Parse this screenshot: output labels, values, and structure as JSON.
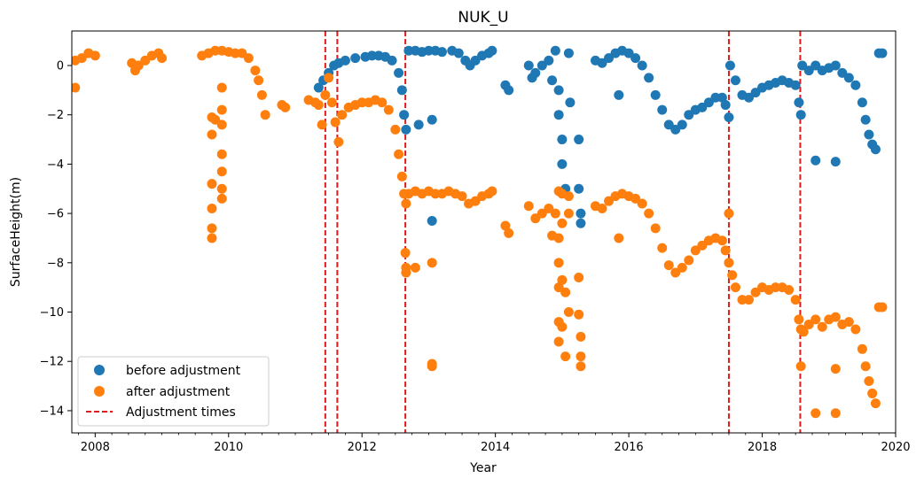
{
  "chart_data": {
    "type": "scatter",
    "title": "NUK_U",
    "xlabel": "Year",
    "ylabel": "SurfaceHeight(m)",
    "xlim": [
      2007.65,
      2020.0
    ],
    "ylim": [
      -14.9,
      1.4
    ],
    "x_ticks": [
      2008,
      2010,
      2012,
      2014,
      2016,
      2018,
      2020
    ],
    "y_ticks": [
      0,
      -2,
      -4,
      -6,
      -8,
      -10,
      -12,
      -14
    ],
    "grid": false,
    "legend_position": "lower-left",
    "series": [
      {
        "name": "before adjustment",
        "color": "#1f77b4",
        "marker": "circle",
        "points": [
          [
            2011.35,
            -0.9
          ],
          [
            2011.42,
            -0.6
          ],
          [
            2011.5,
            -0.3
          ],
          [
            2011.58,
            0.0
          ],
          [
            2011.65,
            0.1
          ],
          [
            2011.75,
            0.2
          ],
          [
            2011.9,
            0.3
          ],
          [
            2012.05,
            0.35
          ],
          [
            2012.15,
            0.4
          ],
          [
            2012.25,
            0.4
          ],
          [
            2012.35,
            0.35
          ],
          [
            2012.45,
            0.2
          ],
          [
            2012.55,
            -0.3
          ],
          [
            2012.6,
            -1.0
          ],
          [
            2012.63,
            -2.0
          ],
          [
            2012.66,
            -2.6
          ],
          [
            2012.7,
            0.6
          ],
          [
            2012.8,
            0.6
          ],
          [
            2012.9,
            0.55
          ],
          [
            2013.0,
            0.6
          ],
          [
            2013.1,
            0.6
          ],
          [
            2013.2,
            0.55
          ],
          [
            2013.35,
            0.6
          ],
          [
            2013.45,
            0.5
          ],
          [
            2013.55,
            0.2
          ],
          [
            2013.62,
            0.0
          ],
          [
            2013.7,
            0.2
          ],
          [
            2013.8,
            0.4
          ],
          [
            2013.9,
            0.5
          ],
          [
            2013.95,
            0.6
          ],
          [
            2012.85,
            -2.4
          ],
          [
            2013.05,
            -2.2
          ],
          [
            2013.05,
            -6.3
          ],
          [
            2014.15,
            -0.8
          ],
          [
            2014.2,
            -1.0
          ],
          [
            2014.5,
            0.0
          ],
          [
            2014.55,
            -0.5
          ],
          [
            2014.6,
            -0.3
          ],
          [
            2014.7,
            0.0
          ],
          [
            2014.8,
            0.2
          ],
          [
            2014.85,
            -0.6
          ],
          [
            2014.9,
            0.6
          ],
          [
            2014.95,
            -1.0
          ],
          [
            2014.95,
            -2.0
          ],
          [
            2015.0,
            -3.0
          ],
          [
            2015.0,
            -4.0
          ],
          [
            2015.05,
            -5.0
          ],
          [
            2015.1,
            0.5
          ],
          [
            2015.12,
            -1.5
          ],
          [
            2015.25,
            -3.0
          ],
          [
            2015.25,
            -5.0
          ],
          [
            2015.28,
            -6.0
          ],
          [
            2015.28,
            -6.4
          ],
          [
            2015.5,
            0.2
          ],
          [
            2015.6,
            0.1
          ],
          [
            2015.7,
            0.3
          ],
          [
            2015.8,
            0.5
          ],
          [
            2015.9,
            0.6
          ],
          [
            2016.0,
            0.5
          ],
          [
            2016.1,
            0.3
          ],
          [
            2016.2,
            0.0
          ],
          [
            2016.3,
            -0.5
          ],
          [
            2016.4,
            -1.2
          ],
          [
            2016.5,
            -1.8
          ],
          [
            2016.6,
            -2.4
          ],
          [
            2016.7,
            -2.6
          ],
          [
            2016.8,
            -2.4
          ],
          [
            2016.9,
            -2.0
          ],
          [
            2017.0,
            -1.8
          ],
          [
            2017.1,
            -1.7
          ],
          [
            2017.2,
            -1.5
          ],
          [
            2017.3,
            -1.3
          ],
          [
            2017.4,
            -1.3
          ],
          [
            2017.45,
            -1.6
          ],
          [
            2017.5,
            -2.1
          ],
          [
            2015.85,
            -1.2
          ],
          [
            2017.52,
            0.0
          ],
          [
            2017.6,
            -0.6
          ],
          [
            2017.7,
            -1.2
          ],
          [
            2017.8,
            -1.3
          ],
          [
            2017.9,
            -1.1
          ],
          [
            2018.0,
            -0.9
          ],
          [
            2018.1,
            -0.8
          ],
          [
            2018.2,
            -0.7
          ],
          [
            2018.3,
            -0.6
          ],
          [
            2018.4,
            -0.7
          ],
          [
            2018.5,
            -0.8
          ],
          [
            2018.55,
            -1.5
          ],
          [
            2018.58,
            -2.0
          ],
          [
            2018.6,
            0.0
          ],
          [
            2018.7,
            -0.2
          ],
          [
            2018.8,
            0.0
          ],
          [
            2018.9,
            -0.2
          ],
          [
            2019.0,
            -0.1
          ],
          [
            2019.1,
            0.0
          ],
          [
            2019.2,
            -0.3
          ],
          [
            2019.3,
            -0.5
          ],
          [
            2019.4,
            -0.8
          ],
          [
            2019.5,
            -1.5
          ],
          [
            2019.55,
            -2.2
          ],
          [
            2019.6,
            -2.8
          ],
          [
            2019.65,
            -3.2
          ],
          [
            2019.7,
            -3.4
          ],
          [
            2019.75,
            0.5
          ],
          [
            2019.8,
            0.5
          ],
          [
            2018.8,
            -3.85
          ],
          [
            2019.1,
            -3.9
          ]
        ]
      },
      {
        "name": "after adjustment",
        "color": "#ff7f0e",
        "marker": "circle",
        "points": [
          [
            2007.7,
            -0.9
          ],
          [
            2007.7,
            0.2
          ],
          [
            2007.8,
            0.3
          ],
          [
            2007.9,
            0.5
          ],
          [
            2008.0,
            0.4
          ],
          [
            2008.55,
            0.1
          ],
          [
            2008.6,
            -0.2
          ],
          [
            2008.65,
            0.0
          ],
          [
            2008.75,
            0.2
          ],
          [
            2008.85,
            0.4
          ],
          [
            2008.95,
            0.5
          ],
          [
            2009.0,
            0.3
          ],
          [
            2009.6,
            0.4
          ],
          [
            2009.7,
            0.5
          ],
          [
            2009.8,
            0.6
          ],
          [
            2009.9,
            0.6
          ],
          [
            2010.0,
            0.55
          ],
          [
            2010.1,
            0.5
          ],
          [
            2010.2,
            0.5
          ],
          [
            2010.3,
            0.3
          ],
          [
            2010.4,
            -0.2
          ],
          [
            2010.45,
            -0.6
          ],
          [
            2010.5,
            -1.2
          ],
          [
            2010.55,
            -2.0
          ],
          [
            2009.75,
            -2.1
          ],
          [
            2009.75,
            -2.8
          ],
          [
            2009.75,
            -4.8
          ],
          [
            2009.75,
            -5.8
          ],
          [
            2009.75,
            -6.6
          ],
          [
            2009.75,
            -7.0
          ],
          [
            2009.8,
            -2.2
          ],
          [
            2009.9,
            -3.6
          ],
          [
            2009.9,
            -4.3
          ],
          [
            2009.9,
            -5.0
          ],
          [
            2009.9,
            -5.4
          ],
          [
            2009.9,
            -0.9
          ],
          [
            2009.9,
            -1.8
          ],
          [
            2009.9,
            -2.4
          ],
          [
            2010.8,
            -1.6
          ],
          [
            2010.85,
            -1.7
          ],
          [
            2011.2,
            -1.4
          ],
          [
            2011.3,
            -1.5
          ],
          [
            2011.35,
            -1.6
          ],
          [
            2011.4,
            -2.4
          ],
          [
            2011.45,
            -1.2
          ],
          [
            2011.5,
            -0.5
          ],
          [
            2011.55,
            -1.5
          ],
          [
            2011.6,
            -2.3
          ],
          [
            2011.65,
            -3.1
          ],
          [
            2011.7,
            -2.0
          ],
          [
            2011.8,
            -1.7
          ],
          [
            2011.9,
            -1.6
          ],
          [
            2012.0,
            -1.5
          ],
          [
            2012.1,
            -1.5
          ],
          [
            2012.2,
            -1.4
          ],
          [
            2012.3,
            -1.5
          ],
          [
            2012.4,
            -1.8
          ],
          [
            2012.5,
            -2.6
          ],
          [
            2012.55,
            -3.6
          ],
          [
            2012.6,
            -4.5
          ],
          [
            2012.63,
            -5.2
          ],
          [
            2012.66,
            -5.6
          ],
          [
            2012.65,
            -7.6
          ],
          [
            2012.66,
            -8.2
          ],
          [
            2012.66,
            -8.4
          ],
          [
            2012.8,
            -8.2
          ],
          [
            2013.05,
            -8.0
          ],
          [
            2013.05,
            -12.1
          ],
          [
            2013.05,
            -12.2
          ],
          [
            2012.7,
            -5.2
          ],
          [
            2012.8,
            -5.1
          ],
          [
            2012.9,
            -5.2
          ],
          [
            2013.0,
            -5.1
          ],
          [
            2013.1,
            -5.2
          ],
          [
            2013.2,
            -5.2
          ],
          [
            2013.3,
            -5.1
          ],
          [
            2013.4,
            -5.2
          ],
          [
            2013.5,
            -5.3
          ],
          [
            2013.6,
            -5.6
          ],
          [
            2013.7,
            -5.5
          ],
          [
            2013.8,
            -5.3
          ],
          [
            2013.9,
            -5.2
          ],
          [
            2013.95,
            -5.1
          ],
          [
            2014.15,
            -6.5
          ],
          [
            2014.2,
            -6.8
          ],
          [
            2014.5,
            -5.7
          ],
          [
            2014.6,
            -6.2
          ],
          [
            2014.7,
            -6.0
          ],
          [
            2014.8,
            -5.8
          ],
          [
            2014.85,
            -6.9
          ],
          [
            2014.9,
            -6.0
          ],
          [
            2014.95,
            -5.1
          ],
          [
            2015.0,
            -5.2
          ],
          [
            2015.1,
            -5.3
          ],
          [
            2014.95,
            -7.0
          ],
          [
            2014.95,
            -8.0
          ],
          [
            2014.95,
            -9.0
          ],
          [
            2014.95,
            -10.4
          ],
          [
            2014.95,
            -11.2
          ],
          [
            2015.0,
            -8.7
          ],
          [
            2015.0,
            -10.6
          ],
          [
            2015.05,
            -11.8
          ],
          [
            2015.05,
            -9.2
          ],
          [
            2015.1,
            -10.0
          ],
          [
            2015.25,
            -8.6
          ],
          [
            2015.25,
            -10.1
          ],
          [
            2015.28,
            -11.0
          ],
          [
            2015.28,
            -11.8
          ],
          [
            2015.28,
            -12.2
          ],
          [
            2015.0,
            -6.4
          ],
          [
            2015.1,
            -6.0
          ],
          [
            2015.5,
            -5.7
          ],
          [
            2015.6,
            -5.8
          ],
          [
            2015.7,
            -5.5
          ],
          [
            2015.8,
            -5.3
          ],
          [
            2015.9,
            -5.2
          ],
          [
            2016.0,
            -5.3
          ],
          [
            2016.1,
            -5.4
          ],
          [
            2016.2,
            -5.6
          ],
          [
            2016.3,
            -6.0
          ],
          [
            2016.4,
            -6.6
          ],
          [
            2016.5,
            -7.4
          ],
          [
            2016.6,
            -8.1
          ],
          [
            2016.7,
            -8.4
          ],
          [
            2016.8,
            -8.2
          ],
          [
            2016.9,
            -7.9
          ],
          [
            2017.0,
            -7.5
          ],
          [
            2017.1,
            -7.3
          ],
          [
            2017.2,
            -7.1
          ],
          [
            2017.3,
            -7.0
          ],
          [
            2017.4,
            -7.1
          ],
          [
            2017.45,
            -7.5
          ],
          [
            2017.5,
            -8.0
          ],
          [
            2015.85,
            -7.0
          ],
          [
            2017.5,
            -6.0
          ],
          [
            2017.55,
            -8.5
          ],
          [
            2017.6,
            -9.0
          ],
          [
            2017.7,
            -9.5
          ],
          [
            2017.8,
            -9.5
          ],
          [
            2017.9,
            -9.2
          ],
          [
            2018.0,
            -9.0
          ],
          [
            2018.1,
            -9.1
          ],
          [
            2018.2,
            -9.0
          ],
          [
            2018.3,
            -9.0
          ],
          [
            2018.4,
            -9.1
          ],
          [
            2018.5,
            -9.5
          ],
          [
            2018.55,
            -10.3
          ],
          [
            2018.58,
            -10.7
          ],
          [
            2018.58,
            -12.2
          ],
          [
            2018.62,
            -10.8
          ],
          [
            2018.7,
            -10.5
          ],
          [
            2018.8,
            -10.3
          ],
          [
            2018.9,
            -10.6
          ],
          [
            2019.0,
            -10.3
          ],
          [
            2019.1,
            -10.2
          ],
          [
            2019.2,
            -10.5
          ],
          [
            2019.3,
            -10.4
          ],
          [
            2019.4,
            -10.7
          ],
          [
            2019.5,
            -11.5
          ],
          [
            2019.55,
            -12.2
          ],
          [
            2019.6,
            -12.8
          ],
          [
            2019.65,
            -13.3
          ],
          [
            2019.7,
            -13.7
          ],
          [
            2019.75,
            -9.8
          ],
          [
            2019.8,
            -9.8
          ],
          [
            2018.8,
            -14.1
          ],
          [
            2019.1,
            -14.1
          ],
          [
            2019.1,
            -12.3
          ]
        ]
      },
      {
        "name": "Adjustment times",
        "color": "#e31a1c",
        "line_style": "dashed",
        "x": [
          2011.45,
          2011.63,
          2012.65,
          2017.5,
          2018.57
        ]
      }
    ]
  }
}
